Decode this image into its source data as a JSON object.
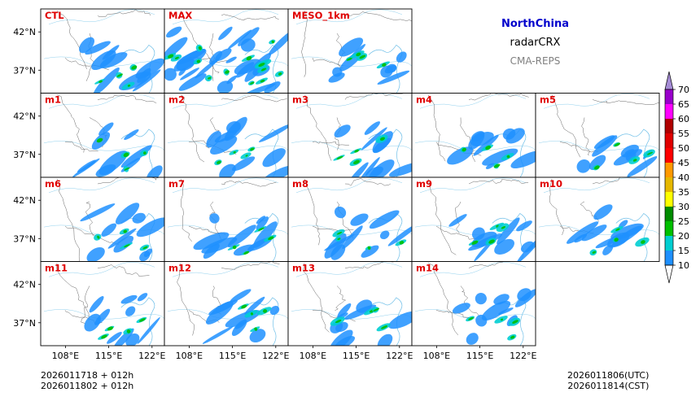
{
  "header": {
    "region": "NorthChina",
    "variable": "radarCRX",
    "model": "CMA-REPS",
    "region_color": "#0000cc",
    "model_color": "#808080"
  },
  "panels": [
    [
      "CTL",
      "MAX",
      "MESO_1km"
    ],
    [
      "m1",
      "m2",
      "m3",
      "m4",
      "m5"
    ],
    [
      "m6",
      "m7",
      "m8",
      "m9",
      "m10"
    ],
    [
      "m11",
      "m12",
      "m13",
      "m14"
    ]
  ],
  "axes": {
    "lat_ticks": [
      "42°N",
      "37°N"
    ],
    "lon_ticks": [
      "108°E",
      "115°E",
      "122°E"
    ]
  },
  "colorbar": {
    "levels": [
      10,
      15,
      20,
      25,
      30,
      35,
      40,
      45,
      50,
      55,
      60,
      65,
      70
    ],
    "colors": [
      "#1e90ff",
      "#00ced1",
      "#00c000",
      "#008c00",
      "#ffff00",
      "#e6b800",
      "#ff9900",
      "#ff0000",
      "#e00000",
      "#b00000",
      "#ff00ff",
      "#9900cc"
    ],
    "extend_below": "#ffffff",
    "extend_above": "#a58cd6"
  },
  "footer": {
    "init_time_utc": "2026011718  +  012h",
    "init_time_cst": "2026011802  +  012h",
    "valid_time_utc": "2026011806(UTC)",
    "valid_time_cst": "2026011814(CST)"
  }
}
